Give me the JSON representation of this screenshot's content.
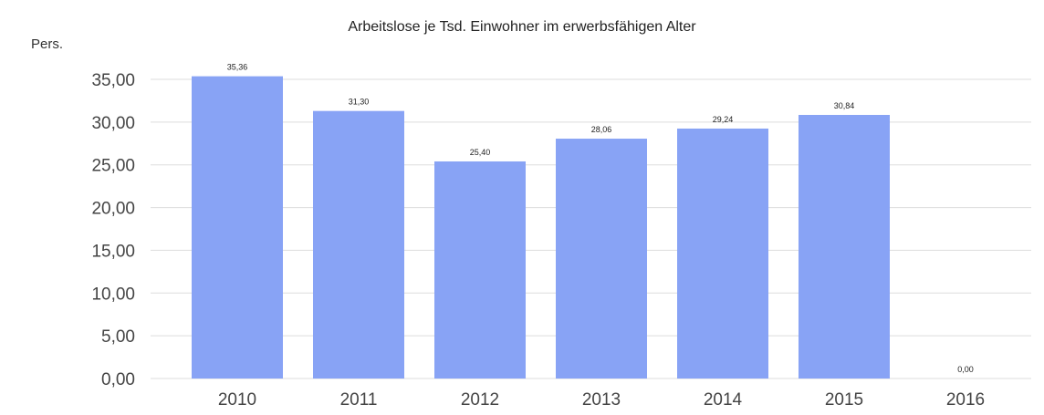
{
  "chart_data": {
    "type": "bar",
    "title": "Arbeitslose je Tsd. Einwohner im erwerbsfähigen Alter",
    "ylabel": "Pers.",
    "xlabel": "",
    "categories": [
      "2010",
      "2011",
      "2012",
      "2013",
      "2014",
      "2015",
      "2016"
    ],
    "values": [
      35.36,
      31.3,
      25.4,
      28.06,
      29.24,
      30.84,
      0.0
    ],
    "value_labels": [
      "35,36",
      "31,30",
      "25,40",
      "28,06",
      "29,24",
      "30,84",
      "0,00"
    ],
    "ylim": [
      0,
      35
    ],
    "yticks": [
      0,
      5,
      10,
      15,
      20,
      25,
      30,
      35
    ],
    "ytick_labels": [
      "0,00",
      "5,00",
      "10,00",
      "15,00",
      "20,00",
      "25,00",
      "30,00",
      "35,00"
    ],
    "grid": true,
    "legend": "none",
    "bar_color": "#88a3f5"
  }
}
